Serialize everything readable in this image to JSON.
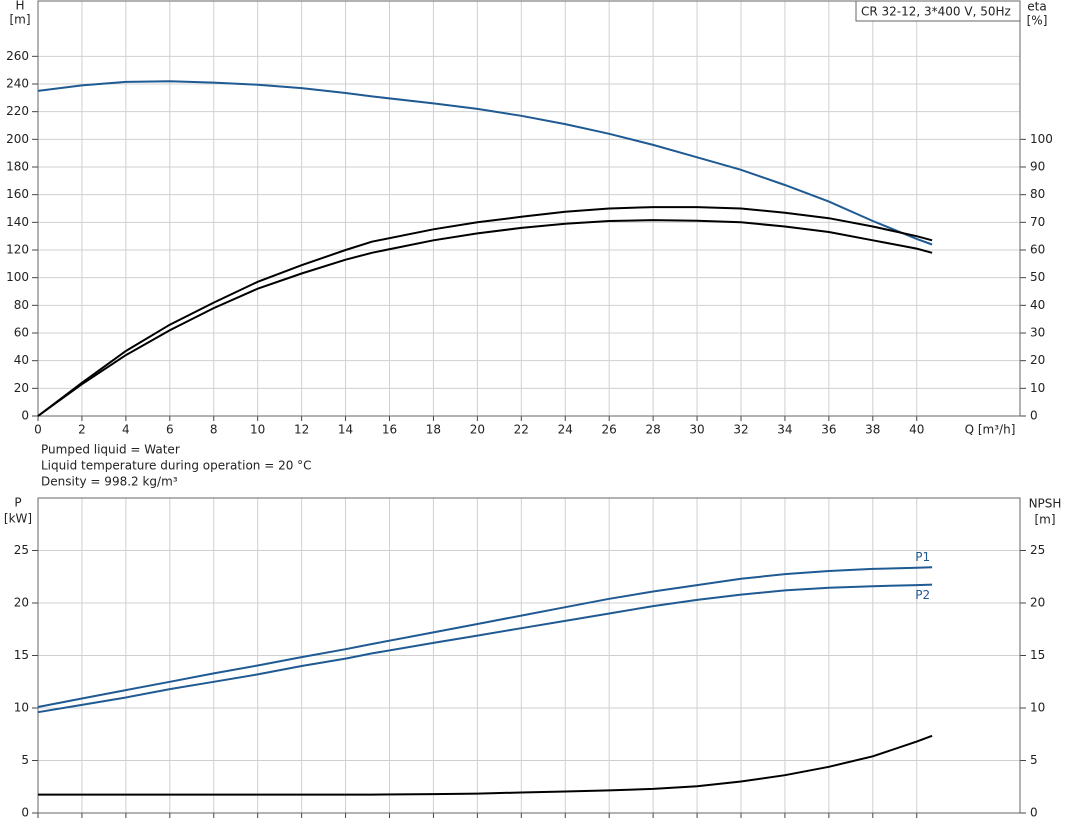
{
  "chart_data": [
    {
      "type": "line",
      "title": "CR 32-12, 3*400 V, 50Hz",
      "ylabel": "H",
      "yunit": "[m]",
      "y2label": "eta",
      "y2unit": "[%]",
      "xlabel": "Q [m³/h]",
      "x": [
        0,
        2,
        4,
        6,
        8,
        10,
        12,
        14,
        15.2,
        18,
        20,
        22,
        24,
        26,
        28,
        30,
        32,
        34,
        36,
        38,
        40,
        40.7
      ],
      "xlim": [
        0,
        44.7
      ],
      "xticks": [
        0,
        2,
        4,
        6,
        8,
        10,
        12,
        14,
        16,
        18,
        20,
        22,
        24,
        26,
        28,
        30,
        32,
        34,
        36,
        38,
        40
      ],
      "ylim": [
        0,
        300
      ],
      "yticks": [
        0,
        20,
        40,
        60,
        80,
        100,
        120,
        140,
        160,
        180,
        200,
        220,
        240,
        260
      ],
      "y2lim": [
        0,
        150
      ],
      "y2ticks": [
        0,
        10,
        20,
        30,
        40,
        50,
        60,
        70,
        80,
        90,
        100
      ],
      "grid": true,
      "series": [
        {
          "color": "#1f5a92",
          "values": [
            235,
            239,
            241.5,
            242,
            241,
            239.5,
            237,
            233.5,
            231,
            226,
            222,
            217,
            211,
            204,
            196,
            187,
            178,
            167,
            155,
            141,
            128,
            124
          ]
        },
        {
          "color": "#000000",
          "axis": "y2",
          "values": [
            0,
            12,
            23.5,
            33,
            41,
            48.5,
            54.5,
            60,
            63,
            67.5,
            70,
            72,
            73.8,
            75,
            75.5,
            75.5,
            75,
            73.5,
            71.5,
            68.5,
            65,
            63.5
          ]
        },
        {
          "color": "#000000",
          "axis": "y2",
          "values": [
            0,
            11.5,
            22,
            31,
            39,
            46,
            51.5,
            56.5,
            59,
            63.5,
            66,
            68,
            69.5,
            70.5,
            70.8,
            70.6,
            70,
            68.5,
            66.5,
            63.5,
            60.5,
            59
          ]
        }
      ]
    },
    {
      "type": "line",
      "ylabel": "P",
      "yunit": "[kW]",
      "y2label": "NPSH",
      "y2unit": "[m]",
      "x": [
        0,
        2,
        4,
        6,
        8,
        10,
        12,
        14,
        15.2,
        18,
        20,
        22,
        24,
        26,
        28,
        30,
        32,
        34,
        36,
        38,
        40,
        40.7
      ],
      "xlim": [
        0,
        44.7
      ],
      "ylim": [
        0,
        30
      ],
      "yticks": [
        0,
        5,
        10,
        15,
        20,
        25
      ],
      "y2lim": [
        0,
        30
      ],
      "y2ticks": [
        0,
        5,
        10,
        15,
        20,
        25
      ],
      "grid": true,
      "series": [
        {
          "name": "P1",
          "color": "#1f5a92",
          "values": [
            10.1,
            10.9,
            11.7,
            12.5,
            13.3,
            14.05,
            14.85,
            15.6,
            16.1,
            17.2,
            18.0,
            18.8,
            19.6,
            20.4,
            21.1,
            21.7,
            22.3,
            22.75,
            23.05,
            23.25,
            23.35,
            23.4
          ]
        },
        {
          "name": "P2",
          "color": "#1f5a92",
          "values": [
            9.6,
            10.3,
            11.0,
            11.8,
            12.5,
            13.2,
            14.0,
            14.7,
            15.2,
            16.2,
            16.9,
            17.6,
            18.3,
            19.0,
            19.7,
            20.3,
            20.8,
            21.2,
            21.45,
            21.6,
            21.7,
            21.75
          ]
        },
        {
          "color": "#000000",
          "axis": "y2",
          "values": [
            1.75,
            1.75,
            1.75,
            1.75,
            1.75,
            1.75,
            1.75,
            1.75,
            1.75,
            1.8,
            1.85,
            1.95,
            2.05,
            2.15,
            2.3,
            2.55,
            3.0,
            3.6,
            4.4,
            5.4,
            6.8,
            7.35
          ]
        }
      ]
    }
  ],
  "notes": [
    "Pumped liquid = Water",
    "Liquid temperature during operation = 20 °C",
    "Density = 998.2 kg/m³"
  ]
}
